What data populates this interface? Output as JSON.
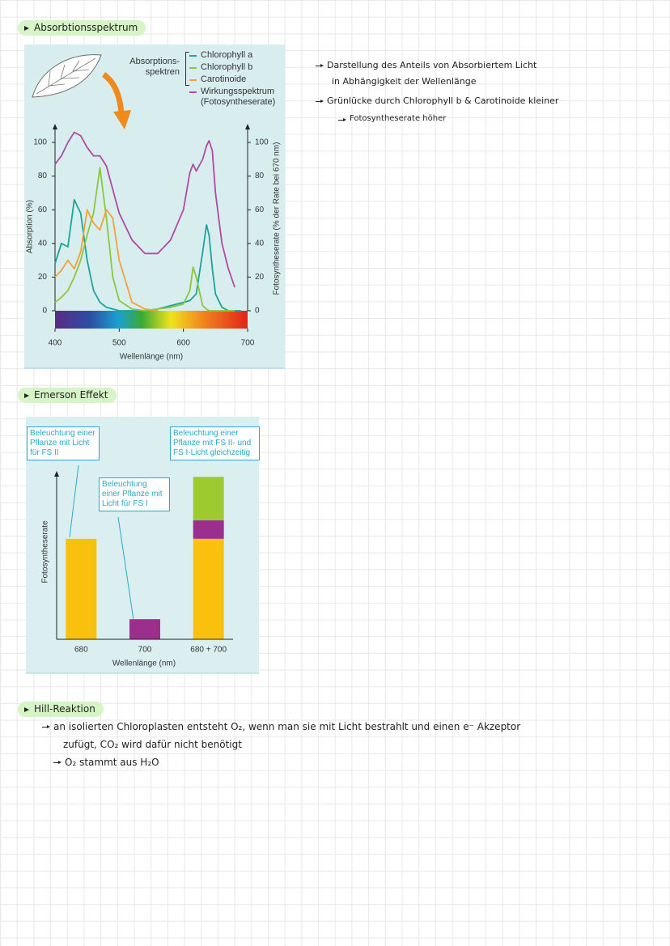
{
  "sections": [
    {
      "heading": "Absorbtionsspektrum",
      "notes": [
        "Darstellung des Anteils von Absorbiertem Licht",
        "in Abhängigkeit der Wellenlänge",
        "Grünlücke durch Chlorophyll b & Carotinoide kleiner",
        "Fotosyntheserate höher"
      ]
    },
    {
      "heading": "Emerson Effekt"
    },
    {
      "heading": "Hill-Reaktion",
      "notes": [
        "an isolierten Chloroplasten entsteht O₂, wenn man sie mit Licht bestrahlt und einen e⁻ Akzeptor",
        "zufügt, CO₂ wird dafür nicht benötigt",
        "O₂ stammt aus H₂O"
      ]
    }
  ],
  "chart_data": [
    {
      "type": "line",
      "x": [
        400,
        410,
        420,
        430,
        440,
        450,
        460,
        470,
        480,
        490,
        500,
        520,
        540,
        560,
        580,
        600,
        610,
        615,
        620,
        630,
        636,
        640,
        645,
        650,
        660,
        670,
        680,
        690,
        700
      ],
      "xlim": [
        400,
        700
      ],
      "xticks": [
        400,
        500,
        600,
        700
      ],
      "ylim": [
        0,
        100
      ],
      "yticks": [
        0,
        20,
        40,
        60,
        80,
        100
      ],
      "y2lim": [
        0,
        100
      ],
      "y2ticks": [
        0,
        20,
        40,
        60,
        80,
        100
      ],
      "xlabel": "Wellenlänge (nm)",
      "ylabel": "Absorption (%)",
      "y2label": "Fotosyntheserate (% der Rate bei 670 nm)",
      "legend_title": [
        "Absorptions-",
        "spektren"
      ],
      "series": [
        {
          "name": "Chlorophyll a",
          "color": "#1ba39c",
          "values": [
            28,
            40,
            38,
            66,
            58,
            30,
            12,
            5,
            2,
            1,
            0,
            0,
            0,
            1,
            3,
            5,
            6,
            8,
            10,
            35,
            51,
            45,
            25,
            10,
            2,
            0,
            0,
            0,
            null
          ]
        },
        {
          "name": "Chlorophyll b",
          "color": "#8cc63e",
          "values": [
            5,
            8,
            12,
            20,
            30,
            45,
            58,
            85,
            55,
            20,
            6,
            1,
            0,
            1,
            2,
            4,
            12,
            26,
            20,
            3,
            1,
            0,
            0,
            0,
            0,
            0,
            0,
            null,
            null
          ]
        },
        {
          "name": "Carotinoide",
          "color": "#f4a03a",
          "values": [
            20,
            24,
            30,
            25,
            35,
            60,
            52,
            48,
            60,
            55,
            30,
            5,
            1,
            0,
            null,
            null,
            null,
            null,
            null,
            null,
            null,
            null,
            null,
            null,
            null,
            null,
            null,
            null,
            null
          ]
        },
        {
          "name": "Wirkungsspektrum (Fotosyntheserate)",
          "color": "#b04aa2",
          "axis": "y2",
          "values": [
            87,
            92,
            100,
            106,
            104,
            97,
            92,
            92,
            86,
            72,
            58,
            42,
            34,
            34,
            42,
            60,
            82,
            87,
            83,
            90,
            98,
            101,
            95,
            70,
            40,
            25,
            14,
            null,
            null
          ]
        }
      ]
    },
    {
      "type": "bar",
      "stacked": true,
      "categories": [
        "680",
        "700",
        "680 + 700"
      ],
      "xlabel": "Wellenlänge (nm)",
      "ylabel": "Fotosyntheserate",
      "ylim": [
        0,
        100
      ],
      "series": [
        {
          "color": "#f9c10e",
          "values": [
            60,
            null,
            60
          ]
        },
        {
          "color": "#9c2f8e",
          "values": [
            null,
            12,
            11
          ]
        },
        {
          "color": "#9dcb2f",
          "values": [
            null,
            null,
            26
          ]
        }
      ],
      "annotations": [
        "Beleuchtung einer Pflanze mit Licht für FS II",
        "Beleuchtung einer Pflanze mit Licht für FS I",
        "Beleuchtung einer Pflanze mit  FS II- und FS I-Licht gleichzeitig"
      ]
    }
  ]
}
